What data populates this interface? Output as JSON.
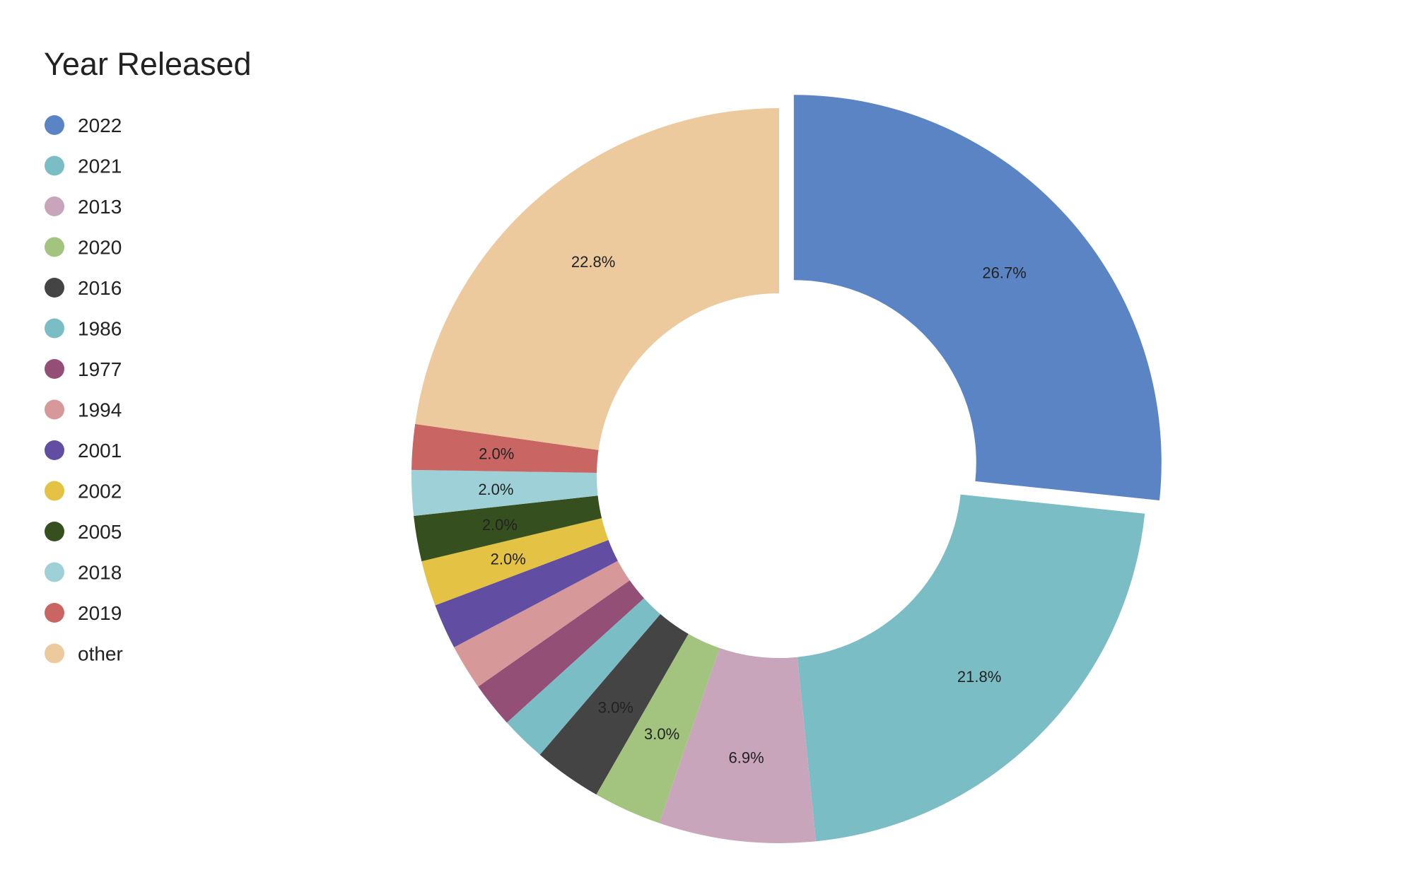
{
  "chart_data": {
    "type": "pie",
    "donut": true,
    "legend_title": "Year Released",
    "legend_position": "top-left",
    "exploded": "2022",
    "start_angle_deg": 0,
    "direction": "clockwise",
    "slices": [
      {
        "name": "2022",
        "value": 26.7,
        "label": "26.7%",
        "color": "#5b84c4"
      },
      {
        "name": "2021",
        "value": 21.8,
        "label": "21.8%",
        "color": "#7bbdc4"
      },
      {
        "name": "2013",
        "value": 6.9,
        "label": "6.9%",
        "color": "#c9a5bb"
      },
      {
        "name": "2020",
        "value": 3.0,
        "label": "3.0%",
        "color": "#a2c47e"
      },
      {
        "name": "2016",
        "value": 3.0,
        "label": "3.0%",
        "color": "#444444"
      },
      {
        "name": "1986",
        "value": 2.0,
        "label": "",
        "color": "#7bbdc4"
      },
      {
        "name": "1977",
        "value": 2.0,
        "label": "",
        "color": "#944f77"
      },
      {
        "name": "1994",
        "value": 2.0,
        "label": "",
        "color": "#d79899"
      },
      {
        "name": "2001",
        "value": 2.0,
        "label": "",
        "color": "#614ea3"
      },
      {
        "name": "2002",
        "value": 2.0,
        "label": "2.0%",
        "color": "#e3c244"
      },
      {
        "name": "2005",
        "value": 2.0,
        "label": "2.0%",
        "color": "#364f1e"
      },
      {
        "name": "2018",
        "value": 2.0,
        "label": "2.0%",
        "color": "#9ed1d7"
      },
      {
        "name": "2019",
        "value": 2.0,
        "label": "2.0%",
        "color": "#c96663"
      },
      {
        "name": "other",
        "value": 22.8,
        "label": "22.8%",
        "color": "#ecca9d"
      }
    ]
  }
}
